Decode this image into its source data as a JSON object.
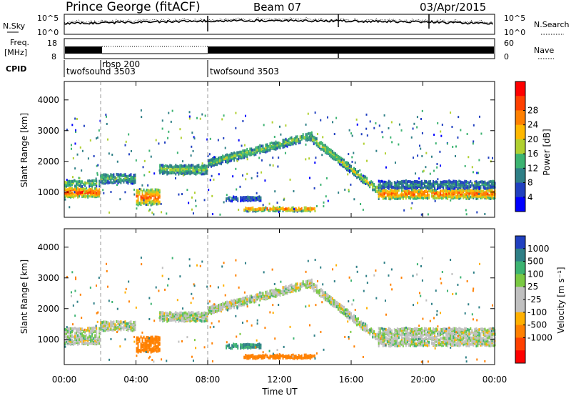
{
  "header": {
    "station": "Prince George (fitACF)",
    "beam": "Beam 07",
    "date": "03/Apr/2015"
  },
  "sky_panel": {
    "label": "N.Sky",
    "y_ticks": [
      "10^5",
      "10^0"
    ],
    "right_ticks": [
      "10^5",
      "10^0"
    ],
    "right_label": "N.Search"
  },
  "freq_panel": {
    "label_line1": "Freq.",
    "label_line2": "[MHz]",
    "y_ticks": [
      "18",
      "8"
    ],
    "right_ticks": [
      "60",
      "0"
    ],
    "right_label": "Nave"
  },
  "cpid": {
    "label": "CPID",
    "segments": [
      {
        "name": "twofsound 3503",
        "start_h": 0.0
      },
      {
        "name": "rbsp 200",
        "start_h": 2.0
      },
      {
        "name": "twofsound 3503",
        "start_h": 8.0
      }
    ]
  },
  "power_panel": {
    "ylabel": "Slant Range [km]",
    "y_ticks": [
      "1000",
      "2000",
      "3000",
      "4000"
    ],
    "colorbar_label": "Power [dB]",
    "colorbar_ticks": [
      "4",
      "8",
      "12",
      "16",
      "20",
      "24",
      "28"
    ],
    "colors": [
      "#0000ff",
      "#2040c0",
      "#2e7f86",
      "#3cb371",
      "#b0d030",
      "#ffb800",
      "#ff8000",
      "#ff4000",
      "#ff0000"
    ]
  },
  "velocity_panel": {
    "ylabel": "Slant Range [km]",
    "y_ticks": [
      "1000",
      "2000",
      "3000",
      "4000"
    ],
    "colorbar_label": "Velocity  [m s⁻¹]",
    "colorbar_ticks": [
      "1000",
      "500",
      "100",
      "25",
      "-25",
      "-100",
      "-500",
      "-1000"
    ],
    "colors": [
      "#2040c0",
      "#2e7f86",
      "#3cb371",
      "#7ac943",
      "#c0c0c0",
      "#c0c0c0",
      "#ffb000",
      "#ff8000",
      "#ff4000",
      "#ff0000"
    ]
  },
  "x_axis": {
    "ticks": [
      "00:00",
      "04:00",
      "08:00",
      "12:00",
      "16:00",
      "20:00",
      "00:00"
    ],
    "label": "Time UT"
  },
  "chart_data": {
    "type": "heatmap",
    "title": "Prince George (fitACF)  Beam 07  03/Apr/2015",
    "xlabel": "Time UT",
    "ylabel": "Slant Range [km]",
    "xlim_hours": [
      0,
      24
    ],
    "ylim_km": [
      180,
      4600
    ],
    "power_range_db": [
      0,
      30
    ],
    "velocity_range_ms": [
      -1000,
      1000
    ],
    "backscatter_bands": [
      {
        "t0": 0.0,
        "t1": 2.0,
        "r_center": 1050,
        "r_width": 300,
        "power_db": 26,
        "velocity": 0
      },
      {
        "t0": 0.0,
        "t1": 2.0,
        "r_center": 1350,
        "r_width": 200,
        "power_db": 14,
        "velocity": 0
      },
      {
        "t0": 2.0,
        "t1": 4.0,
        "r_center": 1500,
        "r_width": 300,
        "power_db": 12,
        "velocity": 0
      },
      {
        "t0": 4.0,
        "t1": 5.3,
        "r_center": 900,
        "r_width": 500,
        "power_db": 24,
        "velocity": -300
      },
      {
        "t0": 5.3,
        "t1": 8.0,
        "r_center": 1800,
        "r_width": 300,
        "power_db": 14,
        "velocity": 0
      },
      {
        "t0": 8.0,
        "t1": 13.8,
        "r_center_start": 2000,
        "r_center_end": 2900,
        "r_width": 250,
        "power_db": 14,
        "velocity": 0
      },
      {
        "t0": 13.8,
        "t1": 17.5,
        "r_center_start": 2800,
        "r_center_end": 1100,
        "r_width": 250,
        "power_db": 16,
        "velocity": 0
      },
      {
        "t0": 17.5,
        "t1": 24.0,
        "r_center": 1000,
        "r_width": 300,
        "power_db": 24,
        "velocity": 0
      },
      {
        "t0": 17.5,
        "t1": 24.0,
        "r_center": 1300,
        "r_width": 250,
        "power_db": 10,
        "velocity": 0
      },
      {
        "t0": 10.0,
        "t1": 14.0,
        "r_center": 500,
        "r_width": 120,
        "power_db": 22,
        "velocity": -200
      },
      {
        "t0": 9.0,
        "t1": 11.0,
        "r_center": 850,
        "r_width": 150,
        "power_db": 8,
        "velocity": 100
      }
    ]
  }
}
